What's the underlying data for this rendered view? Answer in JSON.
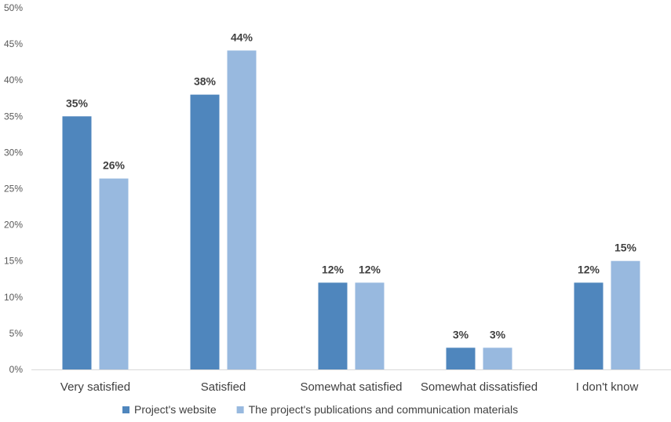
{
  "chart_data": {
    "type": "bar",
    "categories": [
      "Very satisfied",
      "Satisfied",
      "Somewhat satisfied",
      "Somewhat dissatisfied",
      "I don't know"
    ],
    "series": [
      {
        "name": "Project's website",
        "color": "#4f86bd",
        "values": [
          35,
          38,
          12,
          3,
          12
        ],
        "labels": [
          "35%",
          "38%",
          "12%",
          "3%",
          "12%"
        ]
      },
      {
        "name": "The project's publications and communication materials",
        "color": "#98b9df",
        "values": [
          26.4,
          44.1,
          12,
          3,
          15
        ],
        "labels": [
          "26%",
          "44%",
          "12%",
          "3%",
          "15%"
        ]
      }
    ],
    "ylim": [
      0,
      50
    ],
    "yticks": [
      "0%",
      "5%",
      "10%",
      "15%",
      "20%",
      "25%",
      "30%",
      "35%",
      "40%",
      "45%",
      "50%"
    ],
    "tick_step": 5,
    "grid": false,
    "legend_position": "bottom"
  }
}
